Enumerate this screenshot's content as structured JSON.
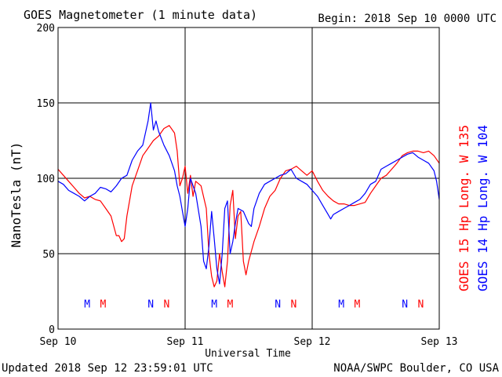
{
  "header": {
    "title": "GOES Magnetometer (1 minute data)",
    "begin": "Begin:  2018 Sep 10 0000 UTC"
  },
  "footer": {
    "updated": "Updated 2018 Sep 12 23:59:01 UTC",
    "source": "NOAA/SWPC Boulder, CO USA"
  },
  "colors": {
    "goes15": "#ff0000",
    "goes14": "#0000ff",
    "frame": "#000000",
    "background": "#ffffff"
  },
  "chart_data": {
    "type": "line",
    "title": "GOES Magnetometer (1 minute data)",
    "xlabel": "Universal Time",
    "ylabel": "NanoTesla (nT)",
    "ylim": [
      0,
      200
    ],
    "xlim": [
      0,
      72
    ],
    "x_unit": "hours since 2018 Sep 10 0000 UTC",
    "yticks": [
      0,
      50,
      100,
      150,
      200
    ],
    "xticks": [
      {
        "x": 0,
        "label": "Sep 10"
      },
      {
        "x": 24,
        "label": "Sep 11"
      },
      {
        "x": 48,
        "label": "Sep 12"
      },
      {
        "x": 72,
        "label": "Sep 13"
      }
    ],
    "grid": true,
    "legend_position": "right-vertical",
    "series": [
      {
        "name": "GOES 15 Hp  Long. W 135",
        "color": "#ff0000",
        "points": [
          [
            0,
            106
          ],
          [
            1,
            102
          ],
          [
            2,
            98
          ],
          [
            3,
            94
          ],
          [
            4,
            90
          ],
          [
            5,
            87
          ],
          [
            6,
            88
          ],
          [
            7,
            86
          ],
          [
            8,
            85
          ],
          [
            9,
            80
          ],
          [
            10,
            75
          ],
          [
            11,
            62
          ],
          [
            11.5,
            62
          ],
          [
            12,
            58
          ],
          [
            12.5,
            60
          ],
          [
            13,
            75
          ],
          [
            14,
            95
          ],
          [
            15,
            105
          ],
          [
            16,
            115
          ],
          [
            17,
            120
          ],
          [
            18,
            125
          ],
          [
            19,
            128
          ],
          [
            20,
            133
          ],
          [
            21,
            135
          ],
          [
            22,
            130
          ],
          [
            22.5,
            118
          ],
          [
            23,
            95
          ],
          [
            23.5,
            100
          ],
          [
            24,
            108
          ],
          [
            24.5,
            90
          ],
          [
            25,
            102
          ],
          [
            25.5,
            88
          ],
          [
            26,
            98
          ],
          [
            27,
            95
          ],
          [
            28,
            80
          ],
          [
            28.5,
            50
          ],
          [
            29,
            35
          ],
          [
            29.5,
            28
          ],
          [
            30,
            32
          ],
          [
            30.5,
            50
          ],
          [
            31,
            38
          ],
          [
            31.5,
            28
          ],
          [
            32,
            45
          ],
          [
            32.5,
            82
          ],
          [
            33,
            92
          ],
          [
            33.5,
            60
          ],
          [
            34,
            75
          ],
          [
            34.5,
            78
          ],
          [
            35,
            45
          ],
          [
            35.5,
            36
          ],
          [
            36,
            45
          ],
          [
            37,
            58
          ],
          [
            38,
            68
          ],
          [
            39,
            80
          ],
          [
            40,
            88
          ],
          [
            41,
            92
          ],
          [
            42,
            100
          ],
          [
            43,
            105
          ],
          [
            44,
            106
          ],
          [
            45,
            108
          ],
          [
            46,
            105
          ],
          [
            47,
            102
          ],
          [
            48,
            105
          ],
          [
            49,
            98
          ],
          [
            50,
            92
          ],
          [
            51,
            88
          ],
          [
            52,
            85
          ],
          [
            53,
            83
          ],
          [
            54,
            83
          ],
          [
            55,
            82
          ],
          [
            56,
            82
          ],
          [
            57,
            83
          ],
          [
            58,
            84
          ],
          [
            59,
            90
          ],
          [
            60,
            95
          ],
          [
            61,
            100
          ],
          [
            62,
            102
          ],
          [
            63,
            106
          ],
          [
            64,
            110
          ],
          [
            65,
            115
          ],
          [
            66,
            117
          ],
          [
            67,
            118
          ],
          [
            68,
            118
          ],
          [
            69,
            117
          ],
          [
            70,
            118
          ],
          [
            71,
            115
          ],
          [
            72,
            110
          ]
        ]
      },
      {
        "name": "GOES 14 Hp  Long. W 104",
        "color": "#0000ff",
        "points": [
          [
            0,
            98
          ],
          [
            1,
            96
          ],
          [
            2,
            92
          ],
          [
            3,
            90
          ],
          [
            4,
            88
          ],
          [
            5,
            85
          ],
          [
            6,
            88
          ],
          [
            7,
            90
          ],
          [
            8,
            94
          ],
          [
            9,
            93
          ],
          [
            10,
            91
          ],
          [
            11,
            95
          ],
          [
            12,
            100
          ],
          [
            13,
            102
          ],
          [
            14,
            112
          ],
          [
            15,
            118
          ],
          [
            16,
            122
          ],
          [
            17,
            138
          ],
          [
            17.5,
            150
          ],
          [
            18,
            132
          ],
          [
            18.5,
            138
          ],
          [
            19,
            131
          ],
          [
            20,
            122
          ],
          [
            21,
            115
          ],
          [
            22,
            105
          ],
          [
            22.5,
            95
          ],
          [
            23,
            88
          ],
          [
            23.5,
            78
          ],
          [
            24,
            68
          ],
          [
            24.5,
            80
          ],
          [
            25,
            100
          ],
          [
            26,
            90
          ],
          [
            27,
            68
          ],
          [
            27.5,
            45
          ],
          [
            28,
            40
          ],
          [
            28.5,
            55
          ],
          [
            29,
            78
          ],
          [
            29.5,
            60
          ],
          [
            30,
            40
          ],
          [
            30.5,
            30
          ],
          [
            31,
            50
          ],
          [
            31.5,
            80
          ],
          [
            32,
            85
          ],
          [
            32.5,
            50
          ],
          [
            33,
            58
          ],
          [
            33.5,
            70
          ],
          [
            34,
            80
          ],
          [
            35,
            78
          ],
          [
            36,
            70
          ],
          [
            36.5,
            68
          ],
          [
            37,
            80
          ],
          [
            38,
            90
          ],
          [
            39,
            96
          ],
          [
            40,
            98
          ],
          [
            41,
            100
          ],
          [
            42,
            102
          ],
          [
            43,
            103
          ],
          [
            44,
            106
          ],
          [
            45,
            100
          ],
          [
            46,
            98
          ],
          [
            47,
            96
          ],
          [
            48,
            92
          ],
          [
            49,
            88
          ],
          [
            50,
            82
          ],
          [
            51,
            76
          ],
          [
            51.5,
            73
          ],
          [
            52,
            76
          ],
          [
            53,
            78
          ],
          [
            54,
            80
          ],
          [
            55,
            82
          ],
          [
            56,
            84
          ],
          [
            57,
            86
          ],
          [
            58,
            90
          ],
          [
            59,
            96
          ],
          [
            60,
            98
          ],
          [
            61,
            106
          ],
          [
            62,
            108
          ],
          [
            63,
            110
          ],
          [
            64,
            112
          ],
          [
            65,
            114
          ],
          [
            66,
            116
          ],
          [
            67,
            117
          ],
          [
            68,
            114
          ],
          [
            69,
            112
          ],
          [
            70,
            110
          ],
          [
            71,
            105
          ],
          [
            71.5,
            98
          ],
          [
            72,
            86
          ]
        ]
      }
    ],
    "markers": [
      {
        "x": 5.5,
        "label": "M",
        "series": "GOES 14 Hp  Long. W 104",
        "color": "#0000ff"
      },
      {
        "x": 8.5,
        "label": "M",
        "series": "GOES 15 Hp  Long. W 135",
        "color": "#ff0000"
      },
      {
        "x": 17.5,
        "label": "N",
        "series": "GOES 14 Hp  Long. W 104",
        "color": "#0000ff"
      },
      {
        "x": 20.5,
        "label": "N",
        "series": "GOES 15 Hp  Long. W 135",
        "color": "#ff0000"
      },
      {
        "x": 29.5,
        "label": "M",
        "series": "GOES 14 Hp  Long. W 104",
        "color": "#0000ff"
      },
      {
        "x": 32.5,
        "label": "M",
        "series": "GOES 15 Hp  Long. W 135",
        "color": "#ff0000"
      },
      {
        "x": 41.5,
        "label": "N",
        "series": "GOES 14 Hp  Long. W 104",
        "color": "#0000ff"
      },
      {
        "x": 44.5,
        "label": "N",
        "series": "GOES 15 Hp  Long. W 135",
        "color": "#ff0000"
      },
      {
        "x": 53.5,
        "label": "M",
        "series": "GOES 14 Hp  Long. W 104",
        "color": "#0000ff"
      },
      {
        "x": 56.5,
        "label": "M",
        "series": "GOES 15 Hp  Long. W 135",
        "color": "#ff0000"
      },
      {
        "x": 65.5,
        "label": "N",
        "series": "GOES 14 Hp  Long. W 104",
        "color": "#0000ff"
      },
      {
        "x": 68.5,
        "label": "N",
        "series": "GOES 15 Hp  Long. W 135",
        "color": "#ff0000"
      }
    ],
    "marker_level": 17
  }
}
